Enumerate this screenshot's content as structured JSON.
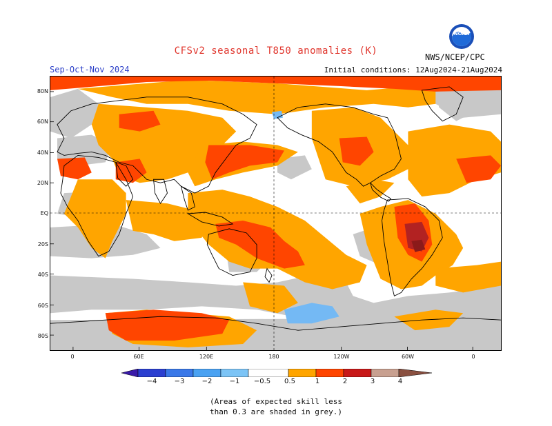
{
  "header": {
    "title": "CFSv2 seasonal T850 anomalies (K)",
    "season": "Sep-Oct-Nov 2024",
    "org": "NWS/NCEP/CPC",
    "initial_conditions": "Initial conditions: 12Aug2024-21Aug2024",
    "logo_icon": "noaa-logo-icon"
  },
  "map": {
    "lat_labels": [
      "80N",
      "60N",
      "40N",
      "20N",
      "EQ",
      "20S",
      "40S",
      "60S",
      "80S"
    ],
    "lon_labels": [
      "0",
      "60E",
      "120E",
      "180",
      "120W",
      "60W",
      "0"
    ],
    "colors": {
      "grey": "#c8c8c8",
      "light_orange": "#ffa500",
      "orange_red": "#ff4500",
      "dark_red": "#b22222",
      "maroon": "#8b1a1a",
      "light_blue": "#74b9f4",
      "coast": "#000000"
    }
  },
  "colorbar": {
    "labels": [
      "−4",
      "−3",
      "−2",
      "−1",
      "−0.5",
      "0.5",
      "1",
      "2",
      "3",
      "4"
    ],
    "colors": [
      "#3a1aa8",
      "#2b3fd0",
      "#3a78e8",
      "#4aa2f2",
      "#7cc4f6",
      "#ffffff",
      "#ffa500",
      "#ff4500",
      "#c81818",
      "#9a0a0a",
      "#c8a090",
      "#8a5040"
    ]
  },
  "footer": {
    "note_line1": "(Areas of expected skill less",
    "note_line2": "than 0.3 are shaded in grey.)"
  }
}
